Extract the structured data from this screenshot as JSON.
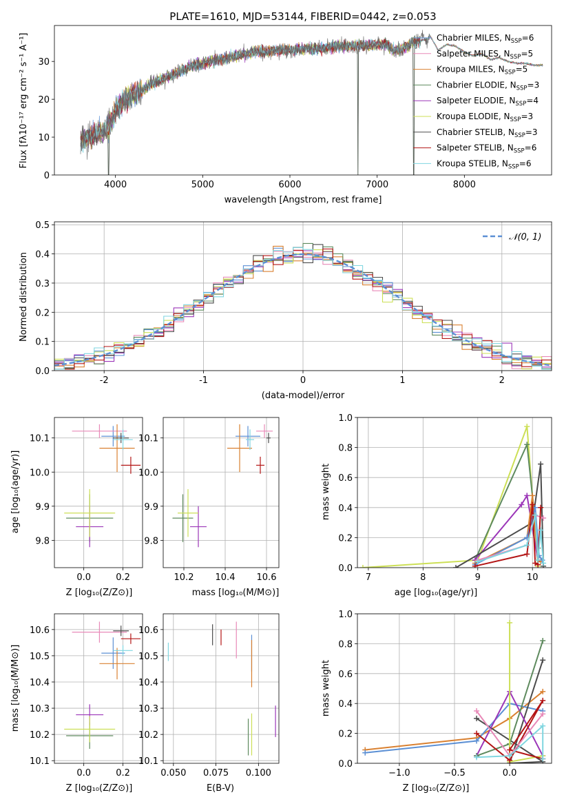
{
  "colors": {
    "chabrier_miles": "#5b8fd4",
    "salpeter_miles": "#e889b8",
    "kroupa_miles": "#d98030",
    "chabrier_elodie": "#5e8a5e",
    "salpeter_elodie": "#9b35b8",
    "kroupa_elodie": "#ccdf55",
    "chabrier_stelib": "#4b4b4b",
    "salpeter_stelib": "#b31515",
    "kroupa_stelib": "#7fd6e0",
    "grid": "#b0b0b0"
  },
  "chart_data": [
    {
      "id": "spectrum",
      "type": "line",
      "title": "PLATE=1610, MJD=53144, FIBERID=0442, z=0.053",
      "xlabel": "wavelength [Angstrom, rest frame]",
      "ylabel": "Flux [fλ10⁻¹⁷ erg cm⁻² s⁻¹ A⁻¹]",
      "xlim": [
        3300,
        9000
      ],
      "ylim": [
        0,
        39.5
      ],
      "xticks": [
        4000,
        5000,
        6000,
        7000,
        8000
      ],
      "yticks": [
        0,
        10,
        20,
        30
      ],
      "grid": false,
      "legend_position": "right",
      "continuum": {
        "x": [
          3600,
          3700,
          3800,
          3900,
          4000,
          4100,
          4200,
          4300,
          4400,
          4500,
          4600,
          4700,
          4800,
          4900,
          5000,
          5100,
          5200,
          5300,
          5400,
          5500,
          5600,
          5700,
          5800,
          5900,
          6000,
          6100,
          6200,
          6300,
          6400,
          6500,
          6600,
          6700,
          6800,
          6900,
          7000,
          7100,
          7200,
          7300,
          7400,
          7500,
          7600
        ],
        "y": [
          9,
          10,
          11,
          12,
          17,
          20,
          21,
          22,
          24,
          25,
          26,
          27,
          28,
          29,
          29.5,
          30,
          30.5,
          31,
          31.5,
          32,
          32.5,
          32.5,
          33,
          33,
          33,
          33.2,
          33.3,
          33.4,
          33.5,
          34,
          34,
          34,
          34.2,
          34.2,
          34.5,
          34.5,
          33,
          33.5,
          35,
          35.5,
          36
        ]
      },
      "models": {
        "x": [
          7500,
          7600,
          7700,
          7800,
          7900,
          8000,
          8100,
          8200,
          8300,
          8400,
          8500,
          8600,
          8700,
          8800,
          8900
        ],
        "y": [
          36,
          37,
          33,
          34.5,
          34,
          32.5,
          31.5,
          32,
          30.5,
          31,
          30,
          29.5,
          29.5,
          29,
          29
        ]
      },
      "spikes": [
        3920,
        6780,
        7420
      ],
      "series": [
        {
          "name": "Chabrier MILES, N",
          "sub": "SSP",
          "suffix": "=6",
          "color_key": "chabrier_miles"
        },
        {
          "name": "Salpeter MILES, N",
          "sub": "SSP",
          "suffix": "=5",
          "color_key": "salpeter_miles"
        },
        {
          "name": "Kroupa MILES, N",
          "sub": "SSP",
          "suffix": "=5",
          "color_key": "kroupa_miles"
        },
        {
          "name": "Chabrier ELODIE, N",
          "sub": "SSP",
          "suffix": "=3",
          "color_key": "chabrier_elodie"
        },
        {
          "name": "Salpeter ELODIE, N",
          "sub": "SSP",
          "suffix": "=4",
          "color_key": "salpeter_elodie"
        },
        {
          "name": "Kroupa ELODIE, N",
          "sub": "SSP",
          "suffix": "=3",
          "color_key": "kroupa_elodie"
        },
        {
          "name": "Chabrier STELIB, N",
          "sub": "SSP",
          "suffix": "=3",
          "color_key": "chabrier_stelib"
        },
        {
          "name": "Salpeter STELIB, N",
          "sub": "SSP",
          "suffix": "=6",
          "color_key": "salpeter_stelib"
        },
        {
          "name": "Kroupa STELIB, N",
          "sub": "SSP",
          "suffix": "=6",
          "color_key": "kroupa_stelib"
        }
      ]
    },
    {
      "id": "residuals",
      "type": "histogram",
      "xlabel": "(data-model)/error",
      "ylabel": "Normed distribution",
      "xlim": [
        -2.5,
        2.5
      ],
      "ylim": [
        0,
        0.51
      ],
      "xticks": [
        -2,
        -1,
        0,
        1,
        2
      ],
      "yticks": [
        0.0,
        0.1,
        0.2,
        0.3,
        0.4,
        0.5
      ],
      "grid": true,
      "legend_position": "top-right",
      "legend": "𝒩(0, 1)",
      "gaussian": {
        "mean": 0,
        "sigma": 1,
        "style": "dashed",
        "color": "#5b8fd4"
      }
    },
    {
      "id": "age_vs_Z",
      "type": "errorbar",
      "xlabel": "Z [log₁₀(Z/Z⊙)]",
      "ylabel": "age  [log₁₀(age/yr)]",
      "xlim": [
        -0.15,
        0.3
      ],
      "ylim": [
        9.72,
        10.16
      ],
      "xticks": [
        0.0,
        0.2
      ],
      "yticks": [
        9.8,
        9.9,
        10.0,
        10.1
      ],
      "grid": true,
      "points": [
        {
          "x": 0.15,
          "xerr": 0.06,
          "y": 10.105,
          "yerr": 0.03,
          "color_key": "chabrier_miles"
        },
        {
          "x": 0.08,
          "xerr": 0.14,
          "y": 10.12,
          "yerr": 0.02,
          "color_key": "salpeter_miles"
        },
        {
          "x": 0.17,
          "xerr": 0.09,
          "y": 10.07,
          "yerr": 0.07,
          "color_key": "kroupa_miles"
        },
        {
          "x": 0.03,
          "xerr": 0.12,
          "y": 9.865,
          "yerr": 0.07,
          "color_key": "chabrier_elodie"
        },
        {
          "x": 0.03,
          "xerr": 0.07,
          "y": 9.84,
          "yerr": 0.06,
          "color_key": "salpeter_elodie"
        },
        {
          "x": 0.03,
          "xerr": 0.13,
          "y": 9.88,
          "yerr": 0.07,
          "color_key": "kroupa_elodie"
        },
        {
          "x": 0.19,
          "xerr": 0.04,
          "y": 10.1,
          "yerr": 0.015,
          "color_key": "chabrier_stelib"
        },
        {
          "x": 0.24,
          "xerr": 0.05,
          "y": 10.02,
          "yerr": 0.025,
          "color_key": "salpeter_stelib"
        },
        {
          "x": 0.2,
          "xerr": 0.05,
          "y": 10.095,
          "yerr": 0.03,
          "color_key": "kroupa_stelib"
        }
      ]
    },
    {
      "id": "age_vs_mass",
      "type": "errorbar",
      "xlabel": "mass [log₁₀(M/M⊙)]",
      "ylabel": "",
      "xlim": [
        10.1,
        10.66
      ],
      "ylim": [
        9.72,
        10.16
      ],
      "xticks": [
        10.2,
        10.4,
        10.6
      ],
      "yticks": [
        9.8,
        9.9,
        10.0,
        10.1
      ],
      "grid": true,
      "points": [
        {
          "x": 10.51,
          "xerr": 0.06,
          "y": 10.105,
          "yerr": 0.03,
          "color_key": "chabrier_miles"
        },
        {
          "x": 10.59,
          "xerr": 0.04,
          "y": 10.12,
          "yerr": 0.02,
          "color_key": "salpeter_miles"
        },
        {
          "x": 10.47,
          "xerr": 0.06,
          "y": 10.07,
          "yerr": 0.07,
          "color_key": "kroupa_miles"
        },
        {
          "x": 10.195,
          "xerr": 0.05,
          "y": 9.865,
          "yerr": 0.07,
          "color_key": "chabrier_elodie"
        },
        {
          "x": 10.27,
          "xerr": 0.04,
          "y": 9.84,
          "yerr": 0.06,
          "color_key": "salpeter_elodie"
        },
        {
          "x": 10.22,
          "xerr": 0.05,
          "y": 9.88,
          "yerr": 0.07,
          "color_key": "kroupa_elodie"
        },
        {
          "x": 10.61,
          "xerr": 0.01,
          "y": 10.1,
          "yerr": 0.015,
          "color_key": "chabrier_stelib"
        },
        {
          "x": 10.57,
          "xerr": 0.02,
          "y": 10.02,
          "yerr": 0.025,
          "color_key": "salpeter_stelib"
        },
        {
          "x": 10.52,
          "xerr": 0.02,
          "y": 10.095,
          "yerr": 0.03,
          "color_key": "kroupa_stelib"
        }
      ]
    },
    {
      "id": "weight_vs_age",
      "type": "line",
      "xlabel": "age  [log₁₀(age/yr)]",
      "ylabel": "mass weight",
      "xlim": [
        6.8,
        10.35
      ],
      "ylim": [
        0,
        1.0
      ],
      "xticks": [
        7,
        8,
        9,
        10
      ],
      "yticks": [
        0.0,
        0.2,
        0.4,
        0.6,
        0.8,
        1.0
      ],
      "grid": true,
      "series": [
        {
          "color_key": "kroupa_elodie",
          "x": [
            6.9,
            9.0,
            9.9,
            10.1
          ],
          "y": [
            0.0,
            0.05,
            0.94,
            0.01
          ]
        },
        {
          "color_key": "chabrier_elodie",
          "x": [
            8.95,
            9.9,
            10.1
          ],
          "y": [
            0.05,
            0.82,
            0.13
          ]
        },
        {
          "color_key": "salpeter_elodie",
          "x": [
            8.95,
            9.8,
            9.9,
            10.1
          ],
          "y": [
            0.05,
            0.42,
            0.48,
            0.05
          ]
        },
        {
          "color_key": "chabrier_stelib",
          "x": [
            8.6,
            10.0,
            10.15,
            10.2
          ],
          "y": [
            0.0,
            0.3,
            0.69,
            0.01
          ]
        },
        {
          "color_key": "kroupa_miles",
          "x": [
            8.95,
            9.9,
            10.0,
            10.1,
            10.15
          ],
          "y": [
            0.03,
            0.2,
            0.48,
            0.05,
            0.04
          ]
        },
        {
          "color_key": "chabrier_miles",
          "x": [
            8.95,
            9.9,
            10.05,
            10.12,
            10.18
          ],
          "y": [
            0.02,
            0.2,
            0.4,
            0.08,
            0.05
          ]
        },
        {
          "color_key": "salpeter_miles",
          "x": [
            9.0,
            9.9,
            10.05,
            10.2
          ],
          "y": [
            0.05,
            0.15,
            0.35,
            0.33
          ]
        },
        {
          "color_key": "salpeter_stelib",
          "x": [
            8.95,
            9.9,
            10.0,
            10.05,
            10.1,
            10.15
          ],
          "y": [
            0.01,
            0.09,
            0.42,
            0.03,
            0.02,
            0.4
          ]
        },
        {
          "color_key": "kroupa_stelib",
          "x": [
            9.0,
            9.9,
            10.05,
            10.1,
            10.15,
            10.2
          ],
          "y": [
            0.04,
            0.15,
            0.35,
            0.05,
            0.25,
            0.03
          ]
        }
      ]
    },
    {
      "id": "mass_vs_Z",
      "type": "errorbar",
      "xlabel": "Z [log₁₀(Z/Z⊙)]",
      "ylabel": "mass [log₁₀(M/M⊙)]",
      "xlim": [
        -0.15,
        0.3
      ],
      "ylim": [
        10.09,
        10.66
      ],
      "xticks": [
        0.0,
        0.2
      ],
      "yticks": [
        10.1,
        10.2,
        10.3,
        10.4,
        10.5,
        10.6
      ],
      "grid": true,
      "points": [
        {
          "x": 0.15,
          "xerr": 0.06,
          "y": 10.51,
          "yerr": 0.06,
          "color_key": "chabrier_miles"
        },
        {
          "x": 0.08,
          "xerr": 0.14,
          "y": 10.59,
          "yerr": 0.04,
          "color_key": "salpeter_miles"
        },
        {
          "x": 0.17,
          "xerr": 0.09,
          "y": 10.47,
          "yerr": 0.06,
          "color_key": "kroupa_miles"
        },
        {
          "x": 0.03,
          "xerr": 0.12,
          "y": 10.195,
          "yerr": 0.05,
          "color_key": "chabrier_elodie"
        },
        {
          "x": 0.03,
          "xerr": 0.07,
          "y": 10.275,
          "yerr": 0.04,
          "color_key": "salpeter_elodie"
        },
        {
          "x": 0.03,
          "xerr": 0.13,
          "y": 10.22,
          "yerr": 0.05,
          "color_key": "kroupa_elodie"
        },
        {
          "x": 0.19,
          "xerr": 0.04,
          "y": 10.595,
          "yerr": 0.02,
          "color_key": "chabrier_stelib"
        },
        {
          "x": 0.24,
          "xerr": 0.05,
          "y": 10.565,
          "yerr": 0.02,
          "color_key": "salpeter_stelib"
        },
        {
          "x": 0.2,
          "xerr": 0.05,
          "y": 10.52,
          "yerr": 0.02,
          "color_key": "kroupa_stelib"
        }
      ]
    },
    {
      "id": "mass_vs_ebv",
      "type": "errorbar",
      "xlabel": "E(B-V)",
      "ylabel": "",
      "xlim": [
        0.044,
        0.112
      ],
      "ylim": [
        10.09,
        10.66
      ],
      "xticks": [
        0.05,
        0.075,
        0.1
      ],
      "xticklabels": [
        "0.050",
        "0.075",
        "0.100"
      ],
      "yticks": [
        10.1,
        10.2,
        10.3,
        10.4,
        10.5,
        10.6
      ],
      "grid": true,
      "points": [
        {
          "x": 0.096,
          "y": 10.51,
          "yerr": 0.07,
          "color_key": "chabrier_miles"
        },
        {
          "x": 0.087,
          "y": 10.56,
          "yerr": 0.07,
          "color_key": "salpeter_miles"
        },
        {
          "x": 0.096,
          "y": 10.47,
          "yerr": 0.09,
          "color_key": "kroupa_miles"
        },
        {
          "x": 0.094,
          "y": 10.19,
          "yerr": 0.07,
          "color_key": "chabrier_elodie"
        },
        {
          "x": 0.11,
          "y": 10.25,
          "yerr": 0.06,
          "color_key": "salpeter_elodie"
        },
        {
          "x": 0.096,
          "y": 10.2,
          "yerr": 0.08,
          "color_key": "kroupa_elodie"
        },
        {
          "x": 0.073,
          "y": 10.58,
          "yerr": 0.04,
          "color_key": "chabrier_stelib"
        },
        {
          "x": 0.078,
          "y": 10.57,
          "yerr": 0.03,
          "color_key": "salpeter_stelib"
        },
        {
          "x": 0.047,
          "y": 10.515,
          "yerr": 0.035,
          "color_key": "kroupa_stelib"
        }
      ]
    },
    {
      "id": "weight_vs_Z",
      "type": "line",
      "xlabel": "Z [log₁₀(Z/Z⊙)]",
      "ylabel": "mass weight",
      "xlim": [
        -1.38,
        0.38
      ],
      "ylim": [
        0,
        1.0
      ],
      "xticks": [
        -1.0,
        -0.5,
        0.0
      ],
      "xticklabels": [
        "−1.0",
        "−0.5",
        "0.0"
      ],
      "yticks": [
        0.0,
        0.2,
        0.4,
        0.6,
        0.8,
        1.0
      ],
      "grid": true,
      "series": [
        {
          "color_key": "kroupa_miles",
          "x": [
            -1.31,
            -0.3,
            0.0,
            0.3
          ],
          "y": [
            0.09,
            0.17,
            0.3,
            0.48
          ]
        },
        {
          "color_key": "chabrier_miles",
          "x": [
            -1.31,
            -0.3,
            0.0,
            0.3
          ],
          "y": [
            0.07,
            0.15,
            0.4,
            0.35
          ]
        },
        {
          "color_key": "chabrier_stelib",
          "x": [
            -0.3,
            0.3,
            0.0,
            0.3
          ],
          "y": [
            0.3,
            0.01,
            0.0,
            0.69
          ]
        },
        {
          "color_key": "salpeter_elodie",
          "x": [
            -0.3,
            0.0,
            0.3
          ],
          "y": [
            0.05,
            0.48,
            0.05
          ]
        },
        {
          "color_key": "chabrier_elodie",
          "x": [
            -0.3,
            0.0,
            0.3
          ],
          "y": [
            0.05,
            0.13,
            0.82
          ]
        },
        {
          "color_key": "kroupa_elodie",
          "x": [
            0.0,
            0.0,
            0.3
          ],
          "y": [
            0.94,
            0.01,
            0.05
          ]
        },
        {
          "color_key": "salpeter_stelib",
          "x": [
            -0.3,
            0.0,
            0.3,
            0.0,
            0.3
          ],
          "y": [
            0.2,
            0.02,
            0.42,
            0.09,
            0.03
          ]
        },
        {
          "color_key": "salpeter_miles",
          "x": [
            -0.3,
            0.0,
            0.3
          ],
          "y": [
            0.35,
            0.05,
            0.33
          ]
        },
        {
          "color_key": "kroupa_stelib",
          "x": [
            -0.3,
            0.0,
            0.3,
            0.3
          ],
          "y": [
            0.04,
            0.05,
            0.25,
            0.03
          ]
        }
      ]
    }
  ]
}
